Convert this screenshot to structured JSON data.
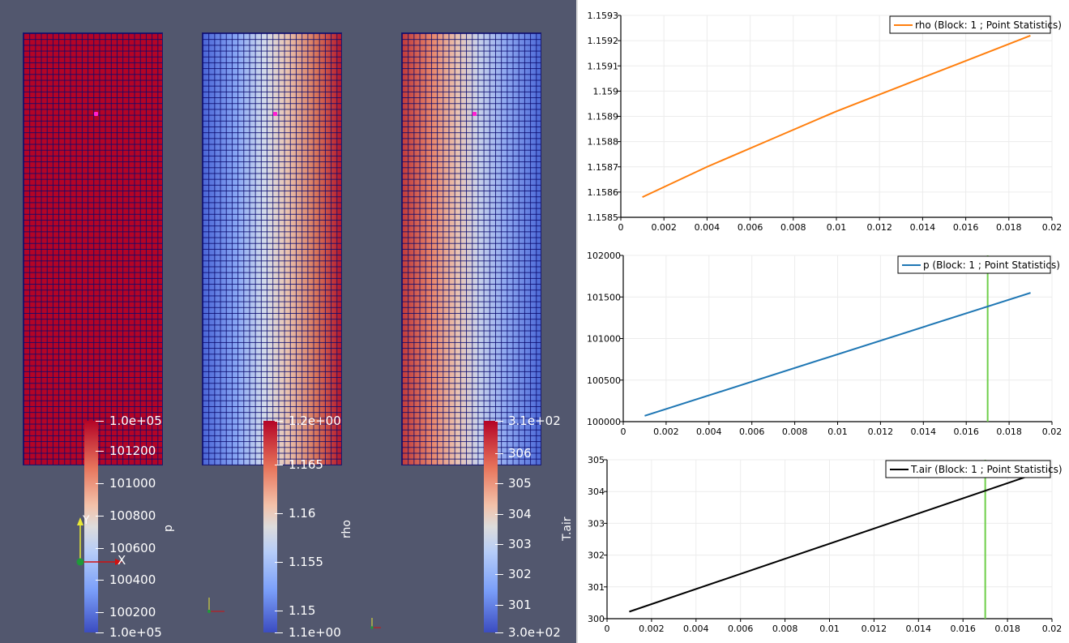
{
  "colorbars": [
    {
      "title": "p",
      "labels": [
        "1.0e+05",
        "101200",
        "101000",
        "100800",
        "100600",
        "100400",
        "100200",
        "1.0e+05"
      ]
    },
    {
      "title": "rho",
      "labels": [
        "1.2e+00",
        "1.165",
        "1.16",
        "1.155",
        "1.15",
        "1.1e+00"
      ]
    },
    {
      "title": "T.air",
      "labels": [
        "3.1e+02",
        "306",
        "305",
        "304",
        "303",
        "302",
        "301",
        "3.0e+02"
      ]
    }
  ],
  "axes_triad": {
    "x_label": "X",
    "y_label": "Y"
  },
  "colors": {
    "viewport_bg": "#52576e",
    "rho_line": "#ff7f0e",
    "p_line": "#1f77b4",
    "t_line": "#000000",
    "marker_line": "#6fcf4a",
    "probe": "#ff1fd2"
  },
  "chart_data": [
    {
      "type": "line",
      "series": [
        {
          "name": "rho (Block: 1 ; Point Statistics)",
          "x": [
            0.001,
            0.004,
            0.007,
            0.01,
            0.013,
            0.016,
            0.019
          ],
          "y": [
            1.15858,
            1.1587,
            1.15881,
            1.15892,
            1.15902,
            1.15912,
            1.15922
          ]
        }
      ],
      "xlim": [
        0,
        0.02
      ],
      "ylim": [
        1.1585,
        1.1593
      ],
      "xticks": [
        "0",
        "0.002",
        "0.004",
        "0.006",
        "0.008",
        "0.01",
        "0.012",
        "0.014",
        "0.016",
        "0.018",
        "0.02"
      ],
      "yticks": [
        "1.1585",
        "1.1586",
        "1.1587",
        "1.1588",
        "1.1589",
        "1.159",
        "1.1591",
        "1.1592",
        "1.1593"
      ],
      "grid": true,
      "legend": "top-right"
    },
    {
      "type": "line",
      "series": [
        {
          "name": "p (Block: 1 ; Point Statistics)",
          "x": [
            0.001,
            0.019
          ],
          "y": [
            100070,
            101550
          ]
        }
      ],
      "xlim": [
        0,
        0.02
      ],
      "ylim": [
        100000,
        102000
      ],
      "xticks": [
        "0",
        "0.002",
        "0.004",
        "0.006",
        "0.008",
        "0.01",
        "0.012",
        "0.014",
        "0.016",
        "0.018",
        "0.02"
      ],
      "yticks": [
        "100000",
        "100500",
        "101000",
        "101500",
        "102000"
      ],
      "vline_x": 0.017,
      "grid": true,
      "legend": "top-right"
    },
    {
      "type": "line",
      "series": [
        {
          "name": "T.air (Block: 1 ; Point Statistics)",
          "x": [
            0.001,
            0.019
          ],
          "y": [
            300.22,
            304.5
          ]
        }
      ],
      "xlim": [
        0,
        0.02
      ],
      "ylim": [
        300,
        305
      ],
      "xticks": [
        "0",
        "0.002",
        "0.004",
        "0.006",
        "0.008",
        "0.01",
        "0.012",
        "0.014",
        "0.016",
        "0.018",
        "0.02"
      ],
      "yticks": [
        "300",
        "301",
        "302",
        "303",
        "304",
        "305"
      ],
      "vline_x": 0.017,
      "grid": true,
      "legend": "top-right"
    }
  ]
}
